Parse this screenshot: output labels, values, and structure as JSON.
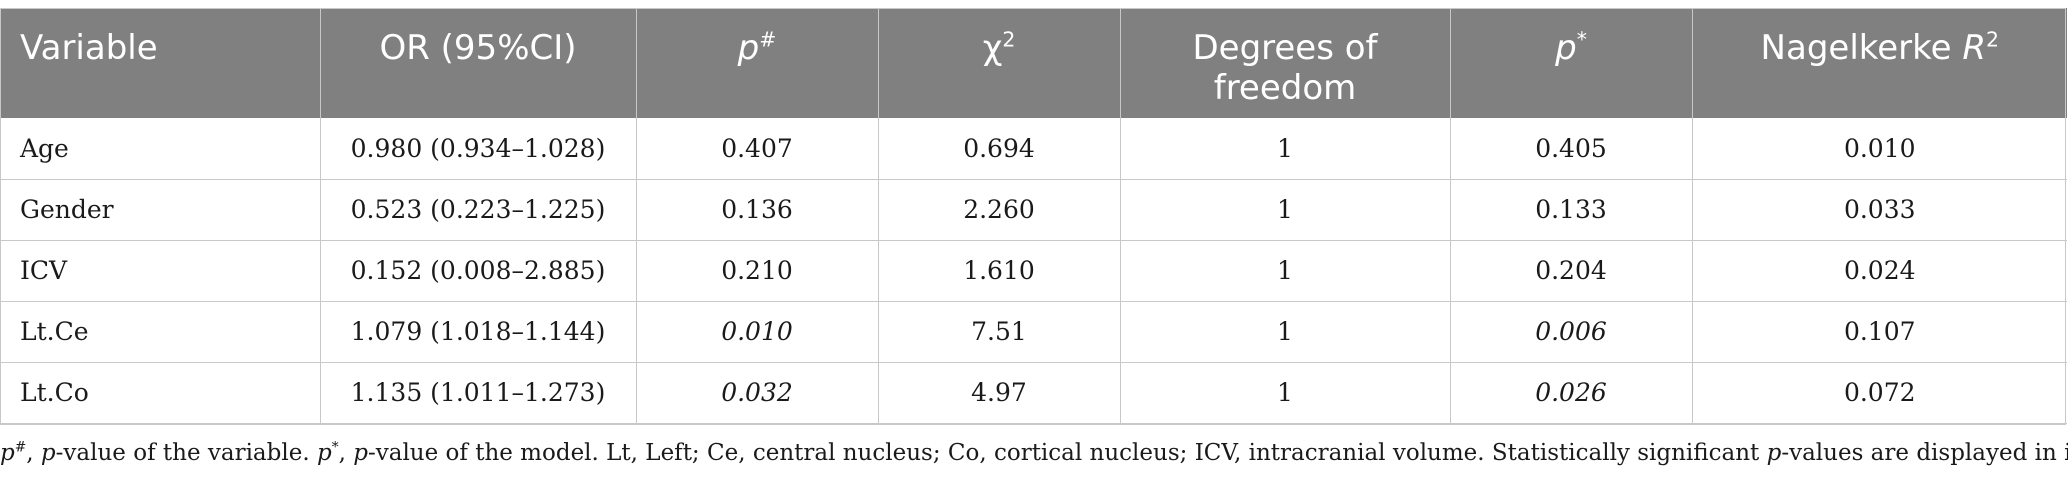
{
  "table": {
    "headers": {
      "variable": "Variable",
      "or": "OR (95%CI)",
      "p_var": {
        "main": "p",
        "sup": "#"
      },
      "chi": {
        "main": "χ",
        "sup": "2"
      },
      "df_line1": "Degrees of",
      "df_line2": "freedom",
      "p_model": {
        "main": "p",
        "sup": "*"
      },
      "r2": {
        "main": "Nagelkerke ",
        "r": "R",
        "sup": "2"
      }
    },
    "rows": [
      {
        "variable": "Age",
        "or": "0.980 (0.934–1.028)",
        "p_var": "0.407",
        "p_var_italic": false,
        "chi": "0.694",
        "df": "1",
        "p_model": "0.405",
        "p_model_italic": false,
        "r2": "0.010"
      },
      {
        "variable": "Gender",
        "or": "0.523 (0.223–1.225)",
        "p_var": "0.136",
        "p_var_italic": false,
        "chi": "2.260",
        "df": "1",
        "p_model": "0.133",
        "p_model_italic": false,
        "r2": "0.033"
      },
      {
        "variable": "ICV",
        "or": "0.152 (0.008–2.885)",
        "p_var": "0.210",
        "p_var_italic": false,
        "chi": "1.610",
        "df": "1",
        "p_model": "0.204",
        "p_model_italic": false,
        "r2": "0.024"
      },
      {
        "variable": "Lt.Ce",
        "or": "1.079 (1.018–1.144)",
        "p_var": "0.010",
        "p_var_italic": true,
        "chi": "7.51",
        "df": "1",
        "p_model": "0.006",
        "p_model_italic": true,
        "r2": "0.107"
      },
      {
        "variable": "Lt.Co",
        "or": "1.135 (1.011–1.273)",
        "p_var": "0.032",
        "p_var_italic": true,
        "chi": "4.97",
        "df": "1",
        "p_model": "0.026",
        "p_model_italic": true,
        "r2": "0.072"
      }
    ]
  },
  "footnote": {
    "p1": "p",
    "p1_sup": "#",
    "t1": ", ",
    "p2": "p",
    "t2": "-value of the variable. ",
    "p3": "p",
    "p3_sup": "*",
    "t3": ", ",
    "p4": "p",
    "t4": "-value of the model. Lt, Left; Ce, central nucleus; Co, cortical nucleus; ICV, intracranial volume. Statistically significant ",
    "p5": "p",
    "t5": "-values are displayed in italics."
  }
}
